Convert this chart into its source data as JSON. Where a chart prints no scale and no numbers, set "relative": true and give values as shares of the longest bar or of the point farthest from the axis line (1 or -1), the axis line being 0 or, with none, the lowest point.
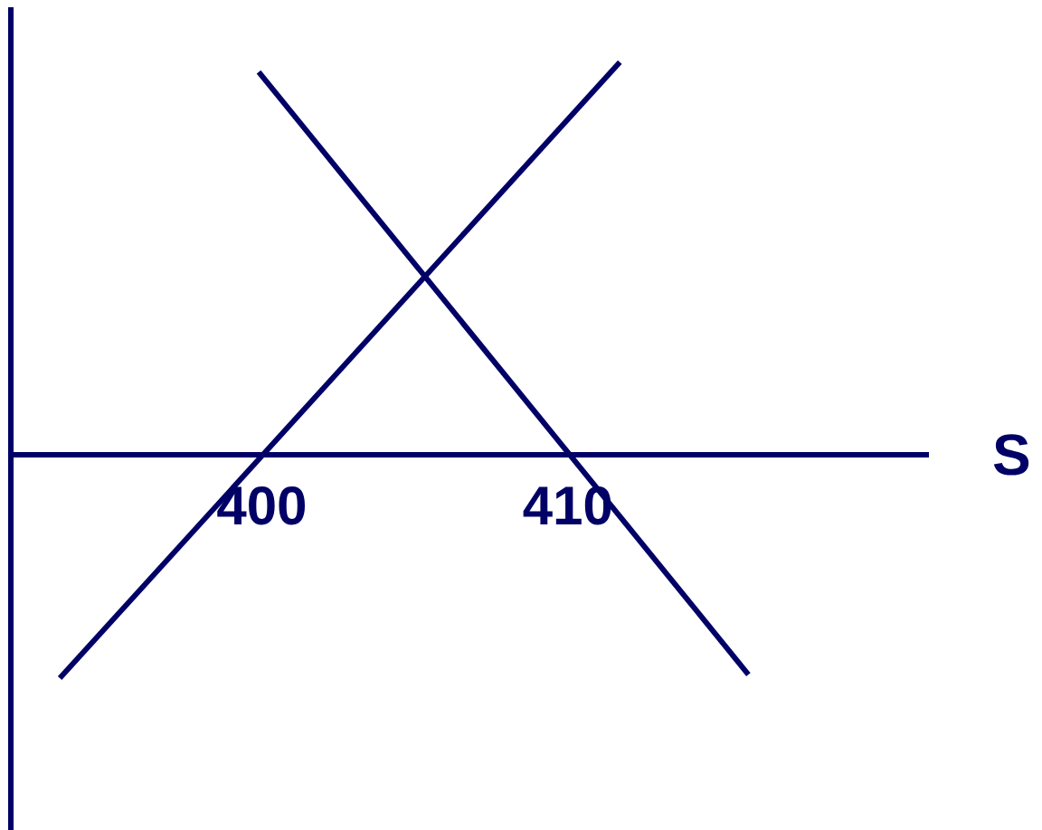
{
  "chart_data": {
    "type": "line",
    "relative": true,
    "xlabel": "S",
    "xlim": [
      391.8,
      421.8
    ],
    "xticks": [
      400,
      410
    ],
    "tick_labels": "x",
    "series": [
      {
        "color": "#000066",
        "x": [
          393.4,
          411.7
        ],
        "values": [
          -0.569,
          1
        ]
      },
      {
        "color": "#000066",
        "x": [
          399.9,
          415.9
        ],
        "values": [
          0.975,
          -0.56
        ]
      }
    ]
  }
}
